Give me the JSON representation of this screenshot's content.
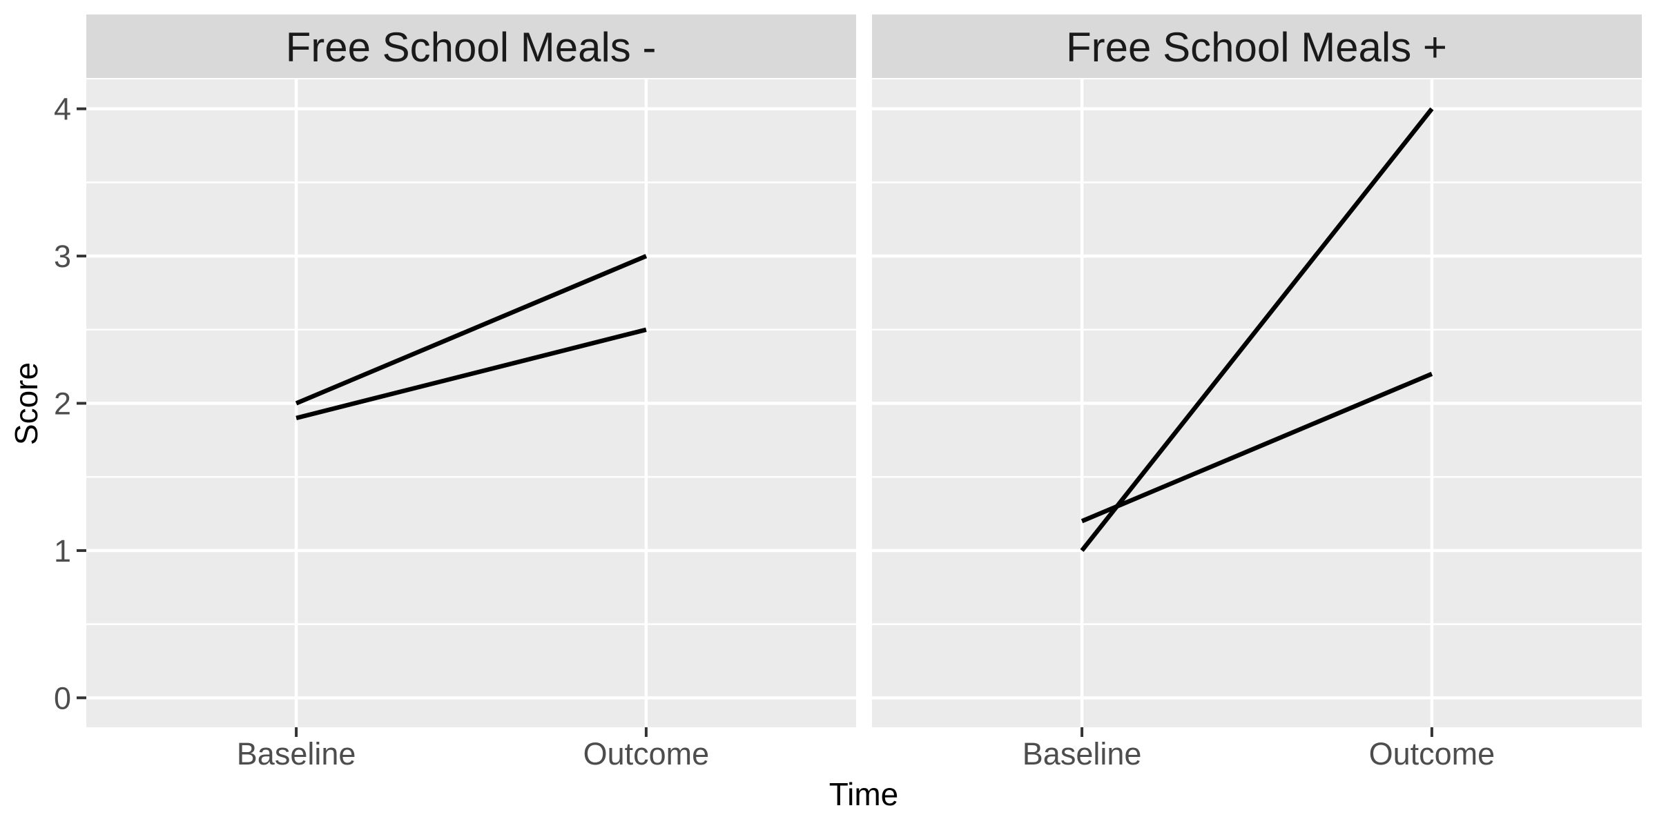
{
  "figure": {
    "background": "#FFFFFF"
  },
  "chart_data": {
    "type": "line",
    "facet_layout": "two-panel horizontal facets sharing y axis",
    "facets": [
      {
        "label": "Free School Meals -",
        "series": [
          {
            "name": "upper-line",
            "points": [
              {
                "x": "Baseline",
                "y": 2.0
              },
              {
                "x": "Outcome",
                "y": 3.0
              }
            ]
          },
          {
            "name": "lower-line",
            "points": [
              {
                "x": "Baseline",
                "y": 1.9
              },
              {
                "x": "Outcome",
                "y": 2.5
              }
            ]
          }
        ]
      },
      {
        "label": "Free School Meals +",
        "series": [
          {
            "name": "steep-line",
            "points": [
              {
                "x": "Baseline",
                "y": 1.0
              },
              {
                "x": "Outcome",
                "y": 4.0
              }
            ]
          },
          {
            "name": "shallow-line",
            "points": [
              {
                "x": "Baseline",
                "y": 1.2
              },
              {
                "x": "Outcome",
                "y": 2.2
              }
            ]
          }
        ]
      }
    ],
    "x": {
      "label": "Time",
      "categories": [
        "Baseline",
        "Outcome"
      ]
    },
    "y": {
      "label": "Score",
      "ticks": [
        0,
        1,
        2,
        3,
        4
      ],
      "minor_ticks": [
        0.5,
        1.5,
        2.5,
        3.5
      ],
      "range": [
        -0.2,
        4.2
      ]
    },
    "legend": "none",
    "grid": "major and minor horizontal white gridlines, major vertical gridlines at categories",
    "style": {
      "panel_background": "#EBEBEB",
      "strip_background": "#D9D9D9",
      "gridline_color": "#FFFFFF",
      "line_color": "#000000",
      "tick_mark_color": "#333333",
      "axis_text_color": "#4D4D4D",
      "axis_title_color": "#000000",
      "strip_text_color": "#1A1A1A"
    }
  }
}
